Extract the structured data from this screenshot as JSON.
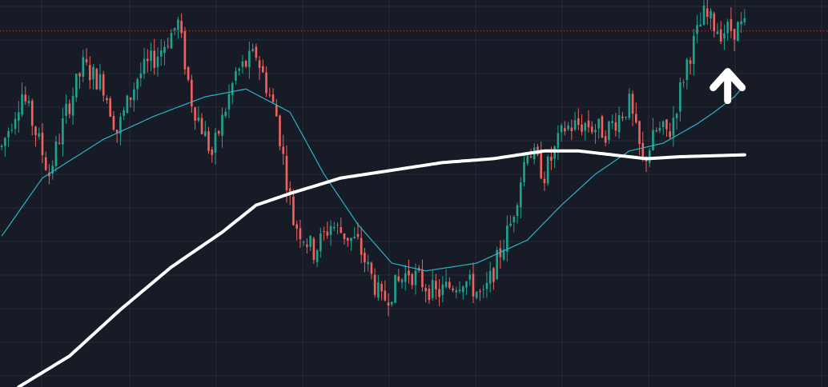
{
  "chart_data": {
    "type": "candlestick",
    "grid": true,
    "colors": {
      "background": "#171b26",
      "grid": "#262b38",
      "up_candle": "#1fa38f",
      "down_candle": "#f0625e",
      "ma_fast": "#2ab3c6",
      "ma_slow": "#ffffff",
      "price_line": "#e0514f",
      "annotation": "#ffffff"
    },
    "ylim": [
      0,
      100
    ],
    "n_bars": 220,
    "last_price_level": 92,
    "price_anchors": [
      [
        0,
        62
      ],
      [
        6,
        76
      ],
      [
        10,
        66
      ],
      [
        14,
        55
      ],
      [
        19,
        71
      ],
      [
        24,
        83
      ],
      [
        30,
        78
      ],
      [
        34,
        66
      ],
      [
        40,
        80
      ],
      [
        46,
        86
      ],
      [
        52,
        94
      ],
      [
        56,
        74
      ],
      [
        62,
        60
      ],
      [
        69,
        81
      ],
      [
        75,
        86
      ],
      [
        81,
        70
      ],
      [
        86,
        43
      ],
      [
        92,
        35
      ],
      [
        97,
        42
      ],
      [
        105,
        37
      ],
      [
        112,
        22
      ],
      [
        120,
        30
      ],
      [
        128,
        24
      ],
      [
        136,
        28
      ],
      [
        142,
        23
      ],
      [
        150,
        42
      ],
      [
        155,
        62
      ],
      [
        160,
        55
      ],
      [
        166,
        67
      ],
      [
        172,
        68
      ],
      [
        178,
        66
      ],
      [
        185,
        73
      ],
      [
        189,
        58
      ],
      [
        193,
        66
      ],
      [
        197,
        66
      ],
      [
        202,
        84
      ],
      [
        207,
        96
      ],
      [
        212,
        92
      ],
      [
        219,
        93
      ]
    ],
    "ma_fast": [
      [
        0,
        39
      ],
      [
        12,
        54
      ],
      [
        30,
        64
      ],
      [
        45,
        70
      ],
      [
        60,
        75
      ],
      [
        72,
        77
      ],
      [
        85,
        71
      ],
      [
        95,
        55
      ],
      [
        105,
        42
      ],
      [
        115,
        32
      ],
      [
        125,
        30
      ],
      [
        140,
        32
      ],
      [
        155,
        38
      ],
      [
        165,
        47
      ],
      [
        175,
        55
      ],
      [
        185,
        61
      ],
      [
        195,
        63
      ],
      [
        205,
        68
      ],
      [
        210,
        71
      ],
      [
        216,
        75
      ],
      [
        219,
        78
      ]
    ],
    "ma_slow": [
      [
        5,
        0
      ],
      [
        20,
        8
      ],
      [
        35,
        20
      ],
      [
        50,
        31
      ],
      [
        65,
        40
      ],
      [
        75,
        47
      ],
      [
        85,
        50
      ],
      [
        100,
        54
      ],
      [
        115,
        56
      ],
      [
        130,
        58
      ],
      [
        145,
        59
      ],
      [
        160,
        61
      ],
      [
        170,
        61
      ],
      [
        180,
        60
      ],
      [
        190,
        59
      ],
      [
        200,
        59.5
      ],
      [
        219,
        60
      ]
    ],
    "annotations": [
      {
        "type": "arrow",
        "direction": "up",
        "bar": 214,
        "level": 79
      }
    ]
  }
}
